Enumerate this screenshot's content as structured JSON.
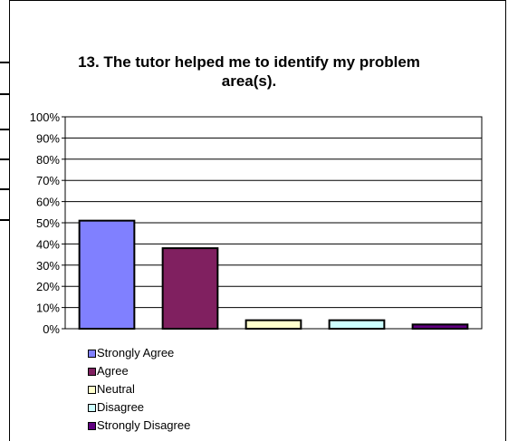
{
  "chart_data": {
    "type": "bar",
    "title": "13. The tutor helped me to identify my problem area(s).",
    "categories": [
      "Strongly Agree",
      "Agree",
      "Neutral",
      "Disagree",
      "Strongly Disagree"
    ],
    "values": [
      51,
      38,
      4,
      4,
      2
    ],
    "colors": [
      "#8080ff",
      "#802060",
      "#ffffcc",
      "#ccffff",
      "#600080"
    ],
    "ylim": [
      0,
      100
    ],
    "yticks": [
      "0%",
      "10%",
      "20%",
      "30%",
      "40%",
      "50%",
      "60%",
      "70%",
      "80%",
      "90%",
      "100%"
    ],
    "grid": true,
    "legend_position": "bottom-left"
  }
}
